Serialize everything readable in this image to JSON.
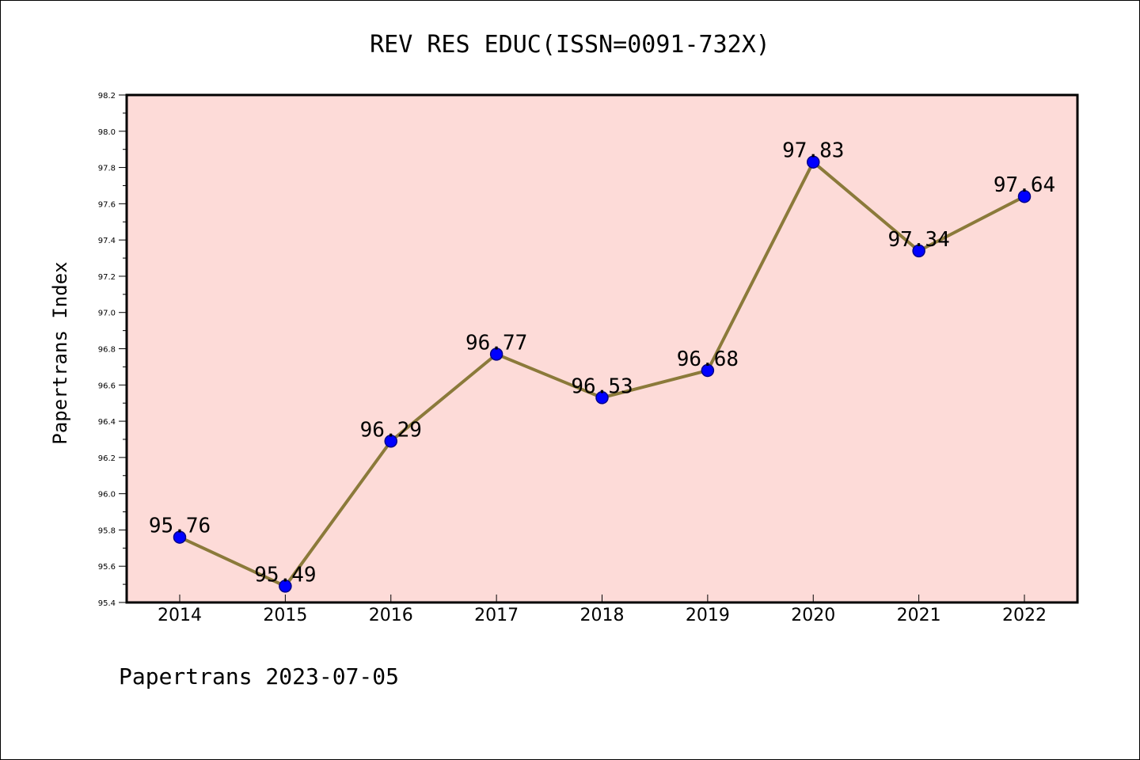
{
  "chart_data": {
    "type": "line",
    "title": "REV RES EDUC(ISSN=0091-732X)",
    "ylabel": "Papertrans Index",
    "xlabel": "",
    "footer": "Papertrans 2023-07-05",
    "categories": [
      "2014",
      "2015",
      "2016",
      "2017",
      "2018",
      "2019",
      "2020",
      "2021",
      "2022"
    ],
    "values": [
      95.76,
      95.49,
      96.29,
      96.77,
      96.53,
      96.68,
      97.83,
      97.34,
      97.64
    ],
    "data_labels": [
      "95.76",
      "95.49",
      "96.29",
      "96.77",
      "96.53",
      "96.68",
      "97.83",
      "97.34",
      "97.64"
    ],
    "ylim": [
      95.4,
      98.2
    ],
    "yticks": [
      "95.4",
      "95.6",
      "95.8",
      "96.0",
      "96.2",
      "96.4",
      "96.6",
      "96.8",
      "97.0",
      "97.2",
      "97.4",
      "97.6",
      "97.8",
      "98.0",
      "98.2"
    ],
    "grid": false,
    "colors": {
      "plot_background": "#fddbd8",
      "line": "#8b7a3a",
      "marker_fill": "#0000ff",
      "marker_edge": "#00008b"
    }
  }
}
